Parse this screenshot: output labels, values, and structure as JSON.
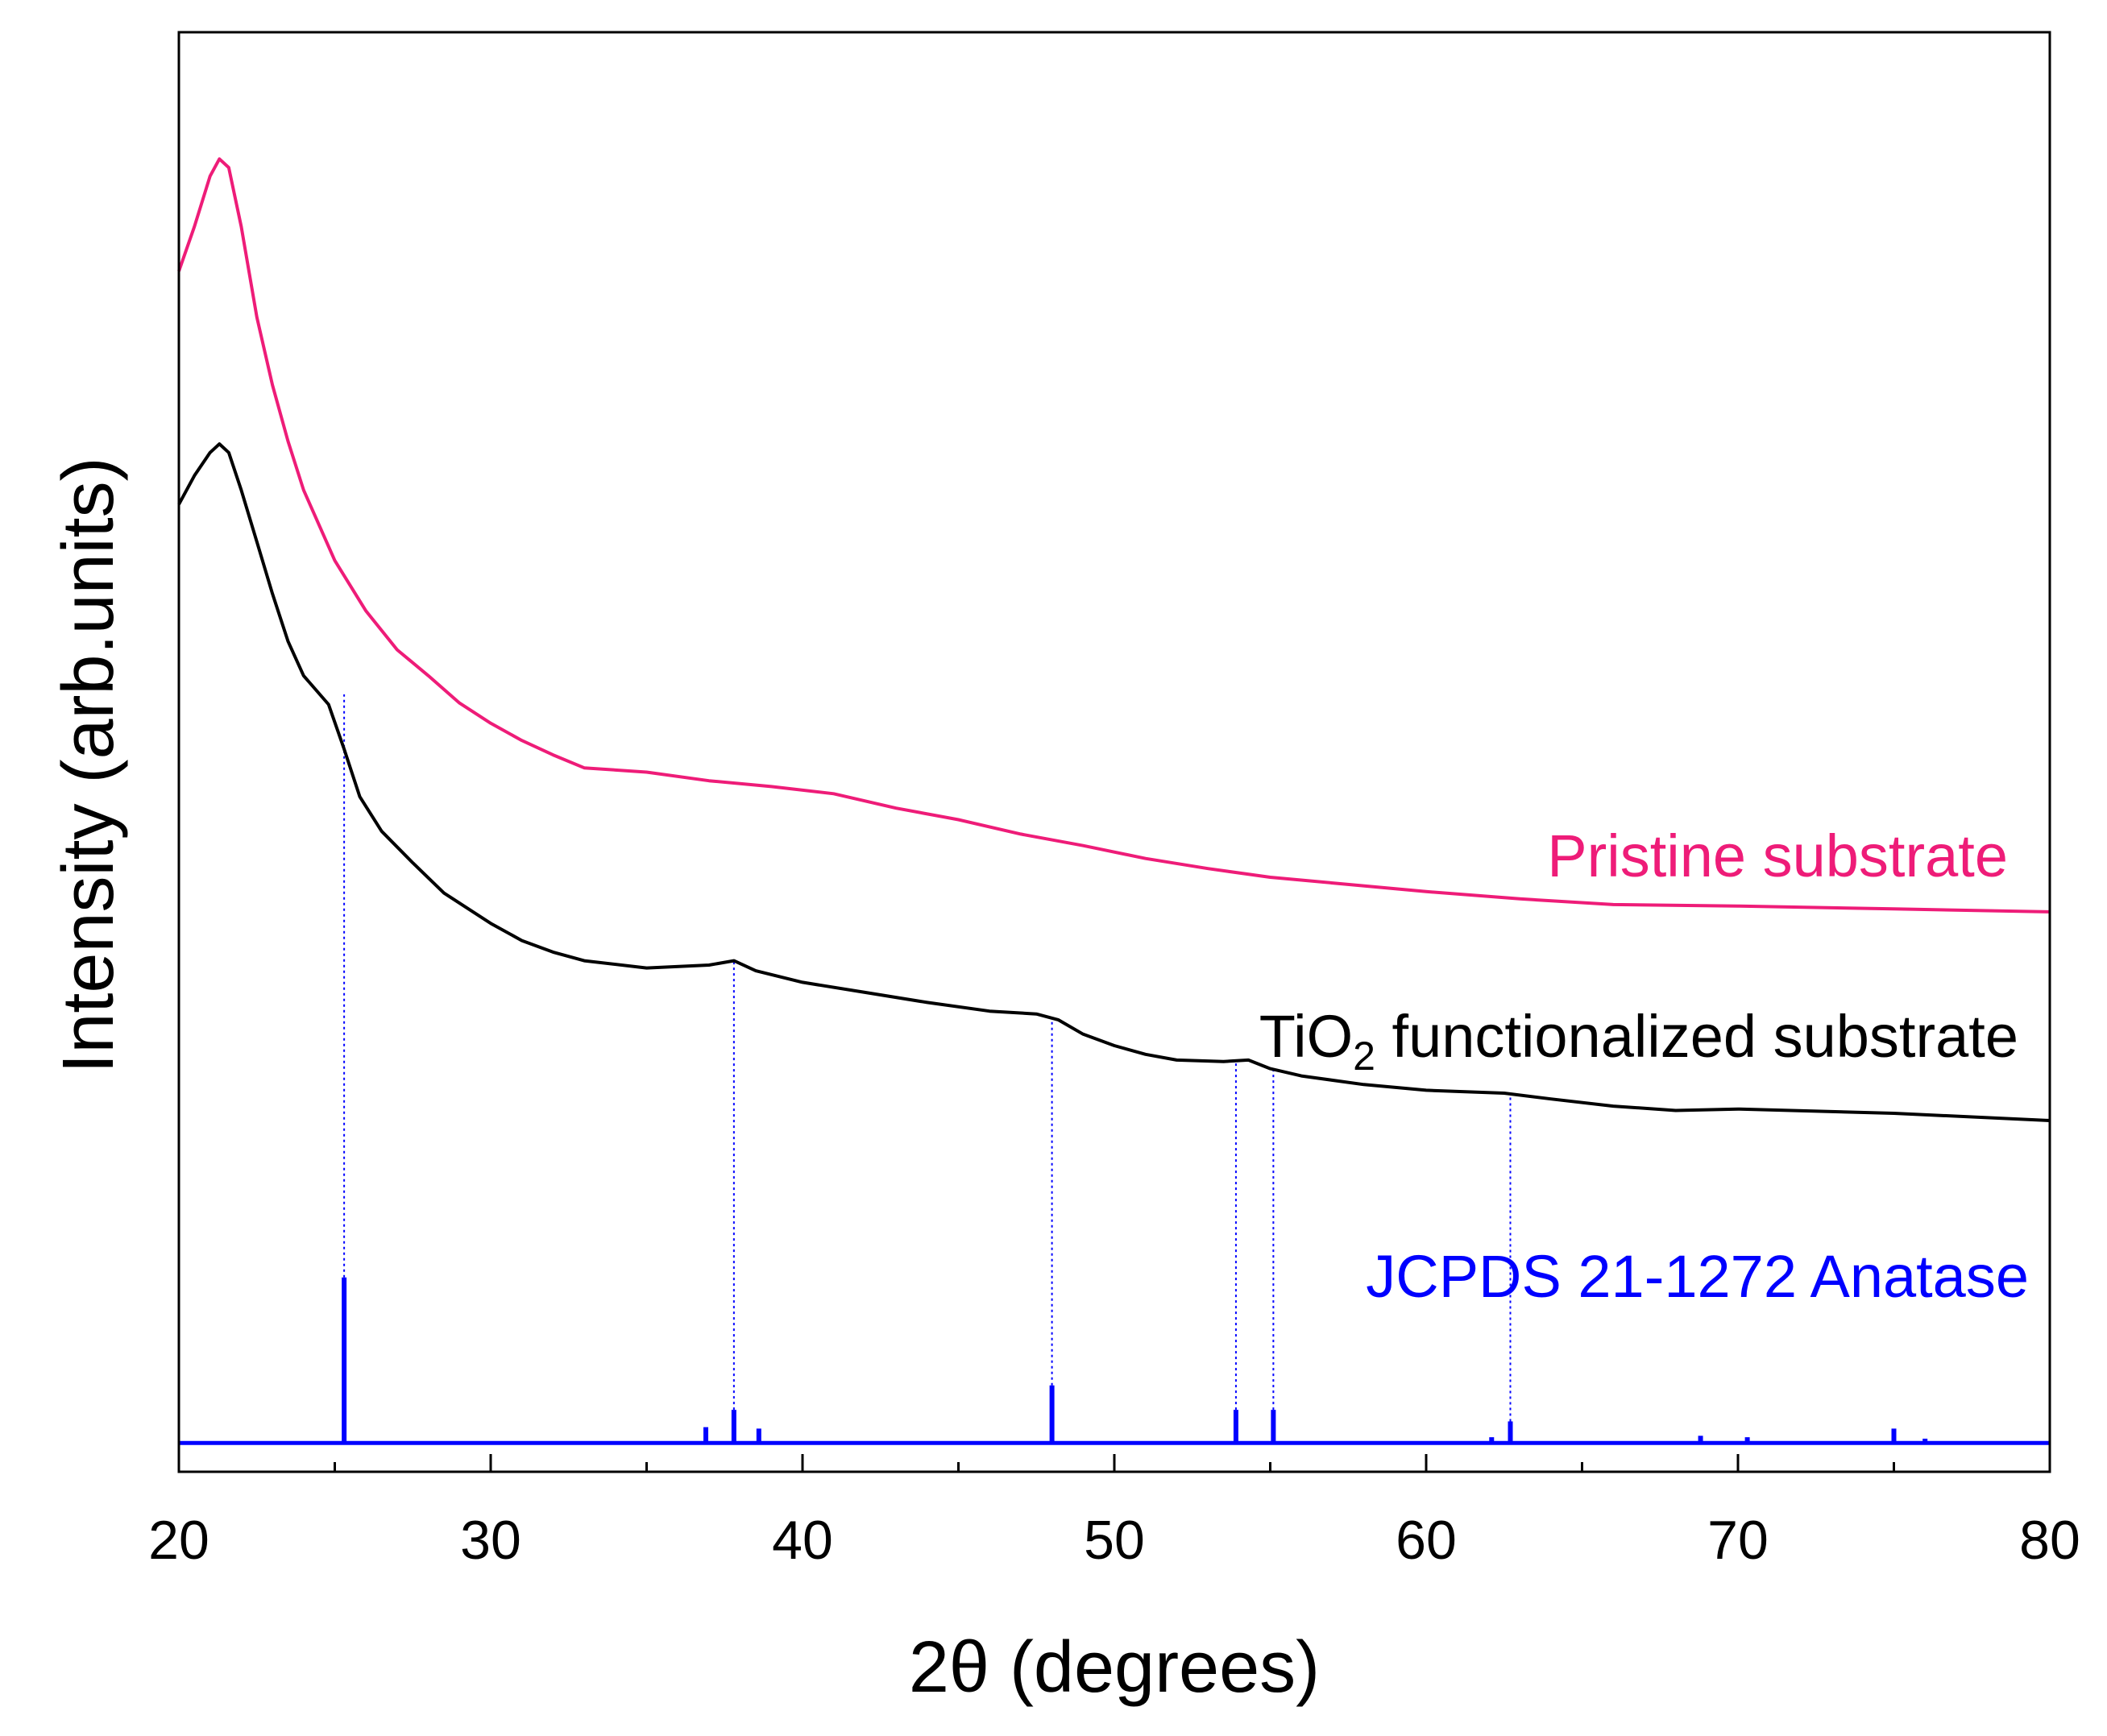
{
  "chart_data": {
    "type": "line",
    "xlabel": "2θ (degrees)",
    "ylabel": "Intensity (arb.units)",
    "xlim": [
      20,
      80
    ],
    "ylim": [
      0,
      100
    ],
    "x_ticks": [
      20,
      30,
      40,
      50,
      60,
      70,
      80
    ],
    "x_tick_labels": [
      "20",
      "30",
      "40",
      "50",
      "60",
      "70",
      "80"
    ],
    "y_tick_labels_shown": false,
    "grid": false,
    "colors": {
      "pristine": "#ee1c78",
      "tio2": "#000000",
      "reference": "#0000ff"
    },
    "series": [
      {
        "name": "Pristine substrate",
        "color": "#ee1c78",
        "x": [
          20.0,
          20.5,
          21.0,
          21.3,
          21.6,
          22.0,
          22.5,
          23.0,
          23.5,
          24.0,
          25.0,
          26.0,
          27.0,
          28.0,
          29.0,
          30.0,
          31.0,
          32.0,
          33.0,
          35.0,
          37.0,
          39.0,
          41.0,
          43.0,
          45.0,
          47.0,
          49.0,
          51.0,
          53.0,
          55.0,
          57.0,
          60.0,
          63.0,
          66.0,
          70.0,
          75.0,
          80.0
        ],
        "y": [
          83.4,
          86.5,
          90.0,
          91.2,
          90.6,
          86.5,
          80.2,
          75.5,
          71.6,
          68.2,
          63.3,
          59.8,
          57.1,
          55.3,
          53.4,
          52.0,
          50.8,
          49.8,
          48.9,
          48.6,
          48.0,
          47.6,
          47.1,
          46.1,
          45.3,
          44.3,
          43.5,
          42.6,
          41.9,
          41.3,
          40.9,
          40.3,
          39.8,
          39.4,
          39.3,
          39.1,
          38.9
        ]
      },
      {
        "name": "TiO2 functionalized substrate",
        "color": "#000000",
        "x": [
          20.0,
          20.5,
          21.0,
          21.3,
          21.6,
          22.0,
          22.5,
          23.0,
          23.5,
          24.0,
          24.8,
          25.3,
          25.8,
          26.5,
          27.5,
          28.5,
          30.0,
          31.0,
          32.0,
          33.0,
          35.0,
          37.0,
          37.8,
          38.5,
          40.0,
          42.0,
          44.0,
          46.0,
          47.5,
          48.2,
          49.0,
          50.0,
          51.0,
          52.0,
          53.5,
          54.3,
          55.0,
          56.0,
          58.0,
          60.0,
          62.5,
          64.0,
          66.0,
          68.0,
          70.0,
          75.0,
          80.0
        ],
        "y": [
          67.2,
          69.2,
          70.8,
          71.4,
          70.8,
          68.2,
          64.6,
          61.0,
          57.7,
          55.3,
          53.3,
          50.2,
          46.9,
          44.5,
          42.3,
          40.2,
          38.1,
          36.9,
          36.1,
          35.5,
          35.0,
          35.2,
          35.5,
          34.8,
          34.0,
          33.3,
          32.6,
          32.0,
          31.8,
          31.4,
          30.4,
          29.6,
          29.0,
          28.6,
          28.5,
          28.6,
          28.0,
          27.5,
          26.9,
          26.5,
          26.3,
          25.9,
          25.4,
          25.1,
          25.2,
          24.9,
          24.4
        ]
      },
      {
        "name": "JCPDS 21-1272 Anatase",
        "color": "#0000ff",
        "type": "stick",
        "baseline": 2.0,
        "x": [
          25.3,
          36.9,
          37.8,
          38.6,
          48.0,
          53.9,
          55.1,
          62.1,
          62.7,
          68.8,
          70.3,
          75.0,
          76.0
        ],
        "y": [
          13.5,
          3.1,
          4.3,
          3.0,
          6.0,
          4.3,
          4.3,
          2.4,
          3.5,
          2.5,
          2.4,
          3.0,
          2.3
        ]
      }
    ],
    "annotations": {
      "pristine_label": "Pristine substrate",
      "tio2_label_prefix": "TiO",
      "tio2_label_subscript": "2",
      "tio2_label_suffix": " functionalized substrate",
      "reference_label": "JCPDS 21-1272 Anatase"
    },
    "peak_guides": [
      {
        "x": 25.3,
        "y_top": 54.0
      },
      {
        "x": 37.8,
        "y_top": 35.4
      },
      {
        "x": 48.0,
        "y_top": 31.5
      },
      {
        "x": 53.9,
        "y_top": 28.5
      },
      {
        "x": 55.1,
        "y_top": 28.0
      },
      {
        "x": 62.7,
        "y_top": 26.3
      }
    ]
  }
}
